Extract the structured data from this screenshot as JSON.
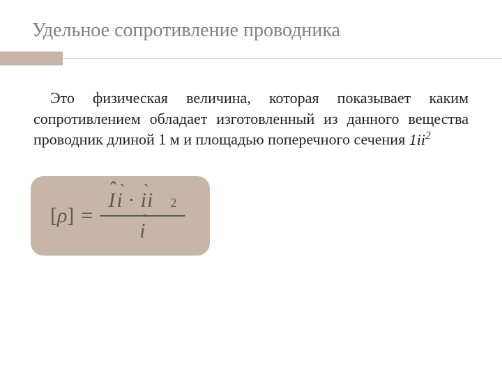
{
  "title": "Удельное сопротивление проводника",
  "accent_color": "#c7b6a8",
  "divider_color": "#c0c0c0",
  "body_text_pre": "Это физическая величина, которая показывает каким сопротивлением обладает изготовленный из данного вещества проводник длиной 1 м и площадью поперечного сечения ",
  "inline_unit_base": "1іі",
  "inline_unit_sup": "2",
  "formula": {
    "box_bg": "#c7b6a8",
    "text_color": "#5a5a5a",
    "lhs_open": "[",
    "lhs_sym": "ρ",
    "lhs_close": "]",
    "eq": "=",
    "num_t1": "I",
    "num_t2": "і",
    "cdot": "·",
    "num_t3": "іі",
    "num_sup": "2",
    "den": "і"
  }
}
